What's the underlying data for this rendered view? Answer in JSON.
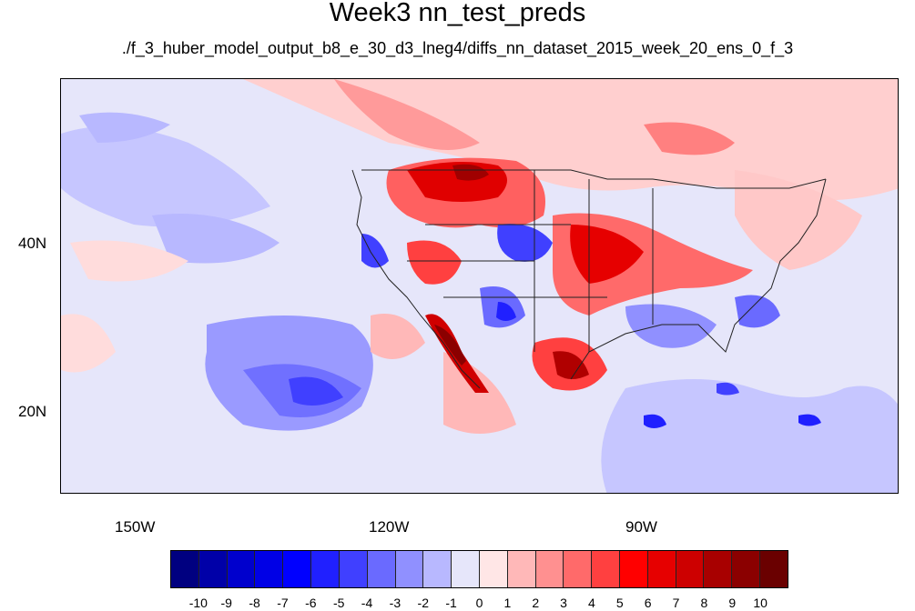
{
  "title": "Week3 nn_test_preds",
  "subtitle": "./f_3_huber_model_output_b8_e_30_d3_lneg4/diffs_nn_dataset_2015_week_20_ens_0_f_3",
  "axes": {
    "lon_labels": [
      "150W",
      "120W",
      "90W"
    ],
    "lat_labels": [
      "40N",
      "20N"
    ]
  },
  "colorbar": {
    "colors": [
      "#000080",
      "#0000a8",
      "#0000cd",
      "#0000e6",
      "#0000ff",
      "#2020ff",
      "#4040ff",
      "#6a6aff",
      "#9090ff",
      "#b8b8ff",
      "#e6e6fa",
      "#ffe6e6",
      "#ffb8b8",
      "#ff9090",
      "#ff6a6a",
      "#ff4040",
      "#ff0000",
      "#e60000",
      "#cd0000",
      "#a80000",
      "#8b0000",
      "#6a0000"
    ],
    "labels": [
      "-10",
      "-9",
      "-8",
      "-7",
      "-6",
      "-5",
      "-4",
      "-3",
      "-2",
      "-1",
      "0",
      "1",
      "2",
      "3",
      "4",
      "5",
      "6",
      "7",
      "8",
      "9",
      "10"
    ]
  }
}
